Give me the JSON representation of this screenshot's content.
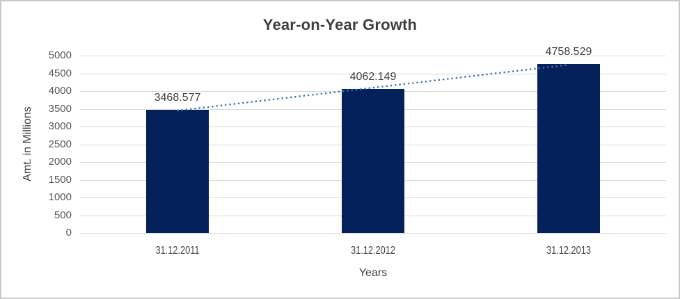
{
  "chart_data": {
    "type": "bar",
    "title": "Year-on-Year Growth",
    "categories": [
      "31.12.2011",
      "31.12.2012",
      "31.12.2013"
    ],
    "values": [
      3468.577,
      4062.149,
      4758.529
    ],
    "data_labels": [
      "3468.577",
      "4062.149",
      "4758.529"
    ],
    "xlabel": "Years",
    "ylabel": "Amt. in Millions",
    "ylim": [
      0,
      5000
    ],
    "ytick_step": 500,
    "grid": true,
    "legend_position": "none",
    "trendline": {
      "type": "linear",
      "style": "dotted",
      "color": "#3f73b8"
    },
    "colors": {
      "bar": "#04215c",
      "gridline": "#d9d9d9",
      "title_text": "#3f3f3f",
      "tick_text": "#585858",
      "data_label_text": "#404040",
      "frame_border": "#c9c9c9",
      "background": "#ffffff"
    }
  }
}
